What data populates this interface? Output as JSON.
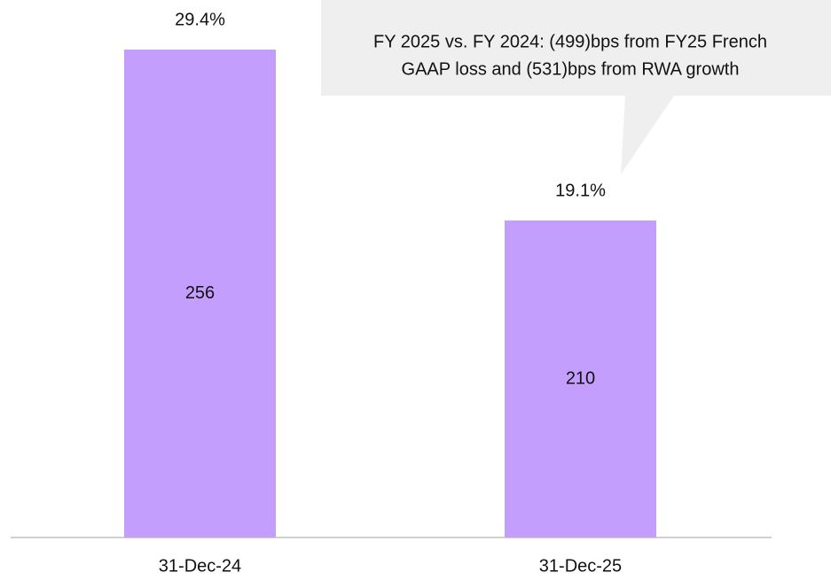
{
  "chart_data": {
    "type": "bar",
    "categories": [
      "31-Dec-24",
      "31-Dec-25"
    ],
    "values": [
      29.4,
      19.1
    ],
    "value_labels": [
      "29.4%",
      "19.1%"
    ],
    "bar_labels": [
      256,
      210
    ],
    "color": "#c49efc",
    "annotation": [
      "FY 2025 vs. FY 2024: (499)bps from FY25 French",
      "GAAP loss and (531)bps from RWA growth"
    ]
  }
}
